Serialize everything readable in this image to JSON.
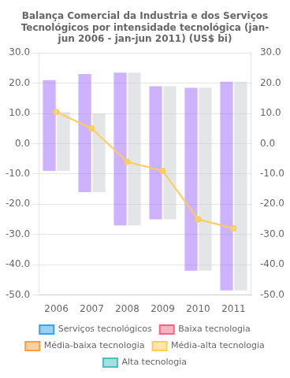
{
  "chart_data": {
    "type": "bar",
    "title": "Balança Comercial da Industria e dos Serviços\nTecnológicos por intensidade tecnológica (jan-\njun 2006 - jan-jun 2011) (US$ bi)",
    "categories": [
      "2006",
      "2007",
      "2008",
      "2009",
      "2010",
      "2011"
    ],
    "series": [
      {
        "name": "Serviços tecnológicos",
        "type": "bar",
        "values": [
          null,
          null,
          null,
          null,
          null,
          null
        ]
      },
      {
        "name": "Baixa tecnologia",
        "type": "bar",
        "values": [
          null,
          null,
          null,
          null,
          null,
          null
        ]
      },
      {
        "name": "Média-baixa tecnologia",
        "type": "bar",
        "values": [
          null,
          null,
          null,
          null,
          null,
          null
        ]
      },
      {
        "name": "Média-alta tecnologia",
        "type": "line",
        "values": [
          10.5,
          5.0,
          -6.0,
          -9.0,
          -25.0,
          -28.0
        ]
      },
      {
        "name": "Alta tecnologia",
        "type": "bar",
        "values": [
          null,
          null,
          null,
          null,
          null,
          null
        ]
      },
      {
        "type": "bar",
        "values": [
          [
            -9.0,
            21.0
          ],
          [
            -16.0,
            23.0
          ],
          [
            -27.0,
            23.5
          ],
          [
            -25.0,
            19.0
          ],
          [
            -42.0,
            18.5
          ],
          [
            -48.5,
            20.5
          ]
        ]
      },
      {
        "type": "bar",
        "values": [
          [
            -9.0,
            10.5
          ],
          [
            -16.0,
            10.0
          ],
          [
            -27.0,
            23.5
          ],
          [
            -25.0,
            19.0
          ],
          [
            -42.0,
            18.5
          ],
          [
            -48.5,
            20.5
          ]
        ]
      }
    ],
    "ylim": [
      -50,
      30
    ],
    "yticks": [
      {
        "value": -50,
        "label": "-50.0"
      },
      {
        "value": -40,
        "label": "-40.0"
      },
      {
        "value": -30,
        "label": "-30.0"
      },
      {
        "value": -20,
        "label": "-20.0"
      },
      {
        "value": -10,
        "label": "-10.0"
      },
      {
        "value": 0,
        "label": "0.0"
      },
      {
        "value": 10,
        "label": "10.0"
      },
      {
        "value": 20,
        "label": "20.0"
      },
      {
        "value": 30,
        "label": "30.0"
      }
    ],
    "y2lim": [
      -50,
      30
    ],
    "y2ticks": [
      {
        "value": -50,
        "label": "-50.0"
      },
      {
        "value": -40,
        "label": "-40.0"
      },
      {
        "value": -30,
        "label": "-30.0"
      },
      {
        "value": -20,
        "label": "-20.0"
      },
      {
        "value": -10,
        "label": "-10.0"
      },
      {
        "value": 0,
        "label": "0.0"
      },
      {
        "value": 10,
        "label": "10.0"
      },
      {
        "value": 20,
        "label": "20.0"
      },
      {
        "value": 30,
        "label": "30.0"
      }
    ],
    "grid": "y",
    "legend": "bottom"
  }
}
